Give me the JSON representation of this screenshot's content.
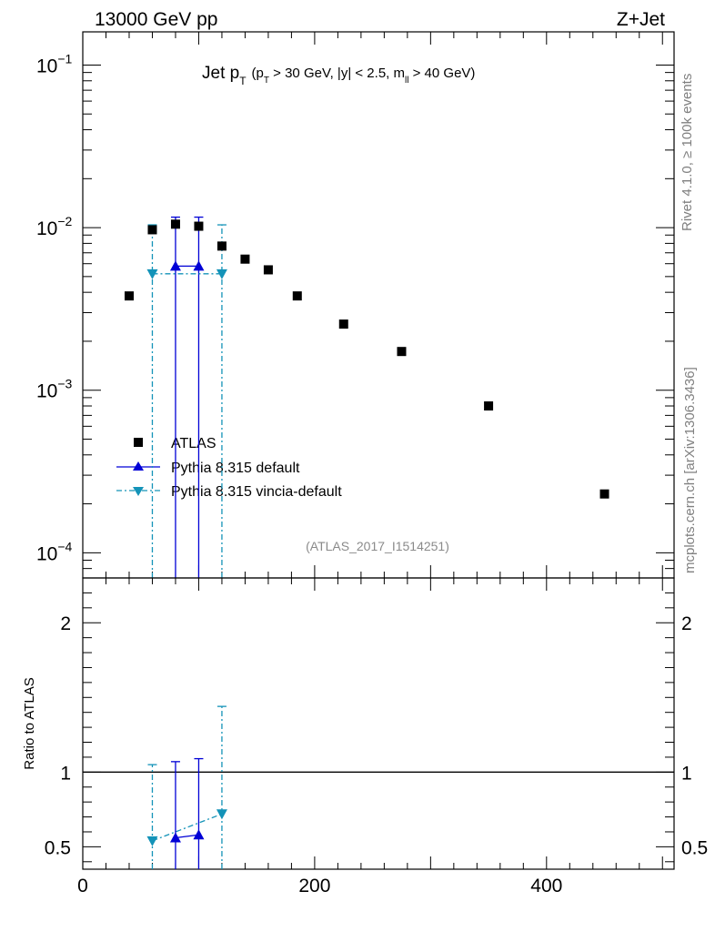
{
  "header": {
    "energy_label": "13000 GeV pp",
    "process_label": "Z+Jet"
  },
  "side_labels": {
    "rivet": "Rivet 4.1.0, ≥ 100k events",
    "mcplots": "mcplots.cern.ch [arXiv:1306.3436]"
  },
  "title": {
    "main": "Jet p",
    "main_sub": "T",
    "cond_open": "(p",
    "cond_sub": "T",
    "cond_mid": " > 30 GeV, |y| < 2.5, m",
    "cond_sub2": "ll",
    "cond_end": " > 40 GeV)"
  },
  "analysis_id": "(ATLAS_2017_I1514251)",
  "legend": {
    "data": "ATLAS",
    "mc1": "Pythia 8.315 default",
    "mc2": "Pythia 8.315 vincia-default"
  },
  "colors": {
    "data": "#000000",
    "mc1": "#0000d6",
    "mc2": "#1493b8",
    "side_text": "#808080"
  },
  "chart_data": [
    {
      "type": "scatter",
      "panel": "main",
      "yscale": "log",
      "xlim": [
        0,
        510
      ],
      "ylim": [
        7e-05,
        0.16
      ],
      "y_ticks": [
        {
          "base": "10",
          "exp": "−1"
        },
        {
          "base": "10",
          "exp": "−2"
        },
        {
          "base": "10",
          "exp": "−3"
        },
        {
          "base": "10",
          "exp": "−4"
        }
      ],
      "series": [
        {
          "name": "ATLAS",
          "x": [
            40,
            60,
            80,
            100,
            120,
            140,
            160,
            185,
            225,
            275,
            350,
            450
          ],
          "y": [
            0.0038,
            0.0097,
            0.0105,
            0.0102,
            0.0077,
            0.0064,
            0.0055,
            0.0038,
            0.00255,
            0.00173,
            0.0008,
            0.00023
          ]
        },
        {
          "name": "Pythia 8.315 default",
          "x": [
            80,
            100
          ],
          "y": [
            0.0058,
            0.0058
          ],
          "yerr_up": [
            0.0116,
            0.0116
          ],
          "bin_edges": [
            70,
            110
          ]
        },
        {
          "name": "Pythia 8.315 vincia-default",
          "x": [
            60,
            80,
            100,
            120
          ],
          "y": [
            0.0052,
            0.0052,
            0.0052,
            0.0052
          ],
          "yerr_up": [
            0.0104,
            0.0104,
            0.0104,
            0.0104
          ],
          "bin_edges": [
            50,
            130
          ]
        }
      ]
    },
    {
      "type": "scatter",
      "panel": "ratio",
      "ylabel": "Ratio to ATLAS",
      "xlim": [
        0,
        510
      ],
      "ylim": [
        0.35,
        2.3
      ],
      "y_tick_labels": [
        "0.5",
        "1",
        "2"
      ],
      "y_tick_values": [
        0.5,
        1,
        2
      ],
      "x_tick_labels": [
        "0",
        "200",
        "400"
      ],
      "x_tick_values": [
        0,
        200,
        400
      ],
      "series": [
        {
          "name": "Pythia 8.315 default",
          "x": [
            80,
            100
          ],
          "y": [
            0.56,
            0.58
          ],
          "yerr_up": [
            1.07,
            1.09
          ]
        },
        {
          "name": "Pythia 8.315 vincia-default",
          "x": [
            60,
            120
          ],
          "y": [
            0.54,
            0.72
          ],
          "yerr_up": [
            1.05,
            1.44
          ]
        }
      ]
    }
  ]
}
